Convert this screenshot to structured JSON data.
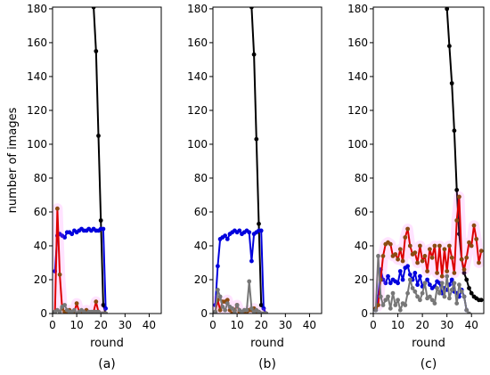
{
  "chart_data": [
    {
      "type": "line",
      "panel_label": "(a)",
      "xlabel": "round",
      "ylabel": "number of images",
      "xlim": [
        0,
        45
      ],
      "ylim": [
        0,
        181
      ],
      "xticks": [
        0,
        10,
        20,
        30,
        40
      ],
      "yticks": [
        0,
        20,
        40,
        60,
        80,
        100,
        120,
        140,
        160,
        180
      ],
      "grid": false,
      "series": [
        {
          "color": "#000000",
          "x": [
            17,
            18,
            19,
            20,
            21,
            22
          ],
          "y": [
            181,
            155,
            105,
            55,
            5,
            0
          ]
        },
        {
          "color": "#0000dd",
          "x": [
            1,
            2,
            3,
            4,
            5,
            6,
            7,
            8,
            9,
            10,
            11,
            12,
            13,
            14,
            15,
            16,
            17,
            18,
            19,
            20,
            21,
            22
          ],
          "y": [
            25,
            46,
            47,
            46,
            45,
            48,
            48,
            47,
            49,
            48,
            49,
            50,
            49,
            49,
            50,
            49,
            50,
            49,
            49,
            50,
            50,
            3
          ]
        },
        {
          "color": "#dd0000",
          "x": [
            1,
            2,
            3,
            4,
            5,
            6,
            7,
            8,
            9,
            10,
            11,
            12,
            13,
            14,
            15,
            16,
            17,
            18,
            19,
            20,
            21,
            22
          ],
          "y": [
            1,
            62,
            23,
            3,
            1,
            0,
            2,
            0,
            1,
            6,
            1,
            0,
            1,
            2,
            0,
            0,
            1,
            7,
            1,
            0,
            0,
            0
          ]
        },
        {
          "color": "#777777",
          "x": [
            1,
            2,
            3,
            4,
            5,
            6,
            7,
            8,
            9,
            10,
            11,
            12,
            13,
            14,
            15,
            16,
            17,
            18,
            19,
            20,
            21,
            22
          ],
          "y": [
            1,
            2,
            1,
            4,
            5,
            2,
            1,
            1,
            2,
            0,
            1,
            2,
            1,
            0,
            1,
            1,
            1,
            1,
            1,
            0,
            0,
            0
          ]
        }
      ]
    },
    {
      "type": "line",
      "panel_label": "(b)",
      "xlabel": "round",
      "ylabel": "",
      "xlim": [
        0,
        45
      ],
      "ylim": [
        0,
        181
      ],
      "xticks": [
        0,
        10,
        20,
        30,
        40
      ],
      "yticks": [
        0,
        20,
        40,
        60,
        80,
        100,
        120,
        140,
        160,
        180
      ],
      "grid": false,
      "series": [
        {
          "color": "#000000",
          "x": [
            16,
            17,
            18,
            19,
            20,
            21,
            22
          ],
          "y": [
            181,
            153,
            103,
            53,
            5,
            3,
            0
          ]
        },
        {
          "color": "#0000dd",
          "x": [
            1,
            2,
            3,
            4,
            5,
            6,
            7,
            8,
            9,
            10,
            11,
            12,
            13,
            14,
            15,
            16,
            17,
            18,
            19,
            20,
            21,
            22
          ],
          "y": [
            5,
            28,
            44,
            45,
            46,
            44,
            47,
            48,
            49,
            48,
            49,
            47,
            48,
            49,
            48,
            31,
            47,
            48,
            49,
            49,
            3,
            0
          ]
        },
        {
          "color": "#dd0000",
          "x": [
            1,
            2,
            3,
            4,
            5,
            6,
            7,
            8,
            9,
            10,
            11,
            12,
            13,
            14,
            15,
            16,
            17,
            18,
            19,
            20,
            21,
            22
          ],
          "y": [
            1,
            8,
            2,
            7,
            7,
            8,
            2,
            0,
            2,
            5,
            1,
            0,
            0,
            1,
            2,
            2,
            3,
            1,
            1,
            0,
            0,
            0
          ]
        },
        {
          "color": "#777777",
          "x": [
            1,
            2,
            3,
            4,
            5,
            6,
            7,
            8,
            9,
            10,
            11,
            12,
            13,
            14,
            15,
            16,
            17,
            18,
            19,
            20,
            21,
            22
          ],
          "y": [
            1,
            14,
            10,
            4,
            2,
            6,
            4,
            3,
            1,
            5,
            2,
            1,
            2,
            2,
            19,
            3,
            1,
            2,
            1,
            0,
            0,
            0
          ]
        }
      ]
    },
    {
      "type": "line",
      "panel_label": "(c)",
      "xlabel": "round",
      "ylabel": "",
      "xlim": [
        0,
        45
      ],
      "ylim": [
        0,
        181
      ],
      "xticks": [
        0,
        10,
        20,
        30,
        40
      ],
      "yticks": [
        0,
        20,
        40,
        60,
        80,
        100,
        120,
        140,
        160,
        180
      ],
      "grid": false,
      "series": [
        {
          "color": "#000000",
          "x": [
            29,
            30,
            31,
            32,
            33,
            34,
            35,
            36,
            37,
            38,
            39,
            40,
            41,
            42,
            43,
            44
          ],
          "y": [
            185,
            180,
            158,
            136,
            108,
            73,
            47,
            32,
            24,
            20,
            15,
            12,
            10,
            9,
            8,
            8
          ]
        },
        {
          "color": "#0000dd",
          "x": [
            1,
            2,
            3,
            4,
            5,
            6,
            7,
            8,
            9,
            10,
            11,
            12,
            13,
            14,
            15,
            16,
            17,
            18,
            19,
            20,
            21,
            22,
            23,
            24,
            25,
            26,
            27,
            28,
            29,
            30,
            31,
            32,
            33,
            34,
            35,
            36,
            37,
            38
          ],
          "y": [
            2,
            10,
            26,
            20,
            18,
            22,
            18,
            20,
            19,
            18,
            25,
            20,
            27,
            28,
            23,
            20,
            24,
            17,
            22,
            16,
            18,
            20,
            17,
            15,
            16,
            19,
            18,
            12,
            15,
            14,
            17,
            20,
            13,
            12,
            10,
            14,
            10,
            2
          ]
        },
        {
          "color": "#dd0000",
          "x": [
            1,
            2,
            3,
            4,
            5,
            6,
            7,
            8,
            9,
            10,
            11,
            12,
            13,
            14,
            15,
            16,
            17,
            18,
            19,
            20,
            21,
            22,
            23,
            24,
            25,
            26,
            27,
            28,
            29,
            30,
            31,
            32,
            33,
            34,
            35,
            36,
            37,
            38,
            39,
            40,
            41,
            42,
            43,
            44
          ],
          "y": [
            3,
            5,
            20,
            34,
            41,
            42,
            41,
            34,
            35,
            32,
            38,
            31,
            45,
            50,
            40,
            35,
            36,
            30,
            40,
            31,
            34,
            25,
            38,
            33,
            40,
            24,
            40,
            22,
            38,
            25,
            40,
            33,
            24,
            55,
            69,
            32,
            26,
            33,
            42,
            40,
            52,
            44,
            30,
            37
          ]
        },
        {
          "color": "#777777",
          "x": [
            1,
            2,
            3,
            4,
            5,
            6,
            7,
            8,
            9,
            10,
            11,
            12,
            13,
            14,
            15,
            16,
            17,
            18,
            19,
            20,
            21,
            22,
            23,
            24,
            25,
            26,
            27,
            28,
            29,
            30,
            31,
            32,
            33,
            34,
            35,
            36,
            37,
            38,
            39
          ],
          "y": [
            2,
            34,
            10,
            5,
            8,
            10,
            3,
            12,
            5,
            8,
            2,
            6,
            5,
            12,
            20,
            15,
            13,
            10,
            8,
            12,
            18,
            9,
            10,
            8,
            6,
            15,
            12,
            18,
            10,
            22,
            9,
            14,
            18,
            6,
            17,
            13,
            10,
            2,
            0
          ]
        }
      ]
    }
  ]
}
